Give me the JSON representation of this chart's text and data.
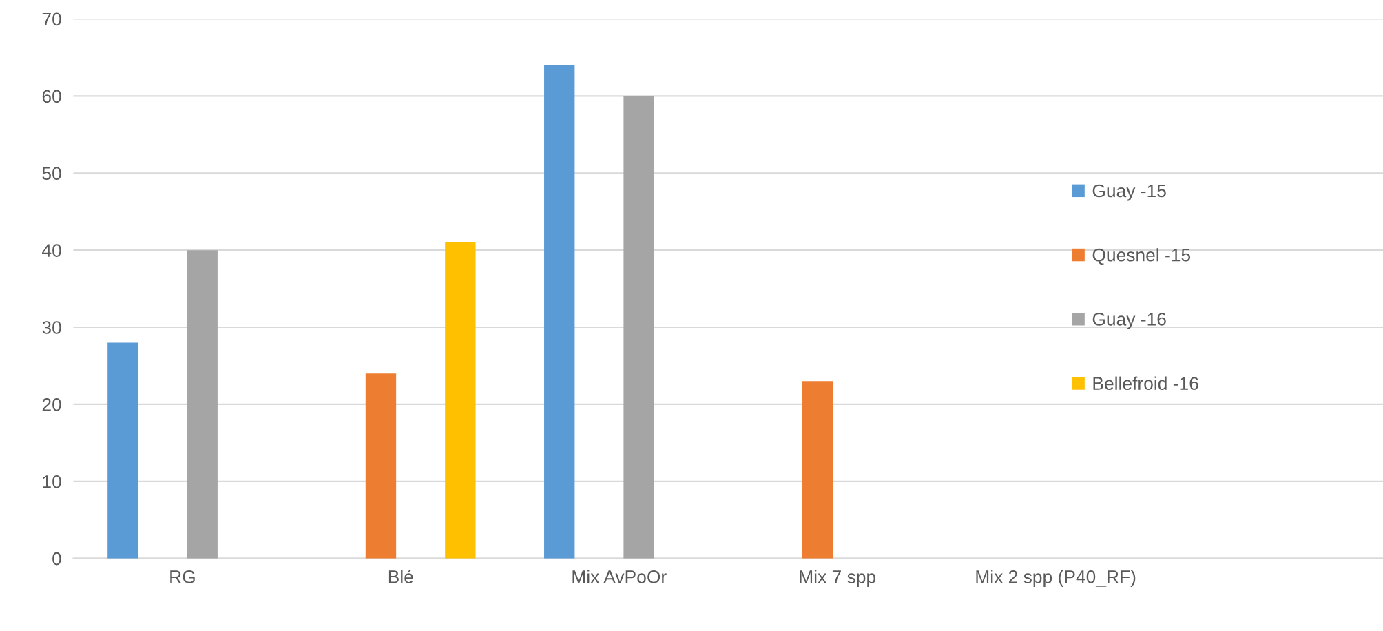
{
  "chart_data": {
    "type": "bar",
    "categories": [
      "RG",
      "Blé",
      "Mix AvPoOr",
      "Mix 7 spp",
      "Mix 2 spp (P40_RF)",
      null
    ],
    "series": [
      {
        "name": "Guay -15",
        "color": "#5b9bd5",
        "values": [
          28,
          null,
          64,
          null,
          null,
          null
        ]
      },
      {
        "name": "Quesnel -15",
        "color": "#ed7d31",
        "values": [
          null,
          24,
          null,
          23,
          null,
          null
        ]
      },
      {
        "name": "Guay -16",
        "color": "#a5a5a5",
        "values": [
          40,
          null,
          60,
          null,
          null,
          null
        ]
      },
      {
        "name": "Bellefroid -16",
        "color": "#ffc000",
        "values": [
          null,
          41,
          null,
          null,
          null,
          null
        ]
      }
    ],
    "ylim": [
      0,
      70
    ],
    "yticks": [
      0,
      10,
      20,
      30,
      40,
      50,
      60,
      70
    ],
    "grid": "y",
    "legend": "right"
  }
}
